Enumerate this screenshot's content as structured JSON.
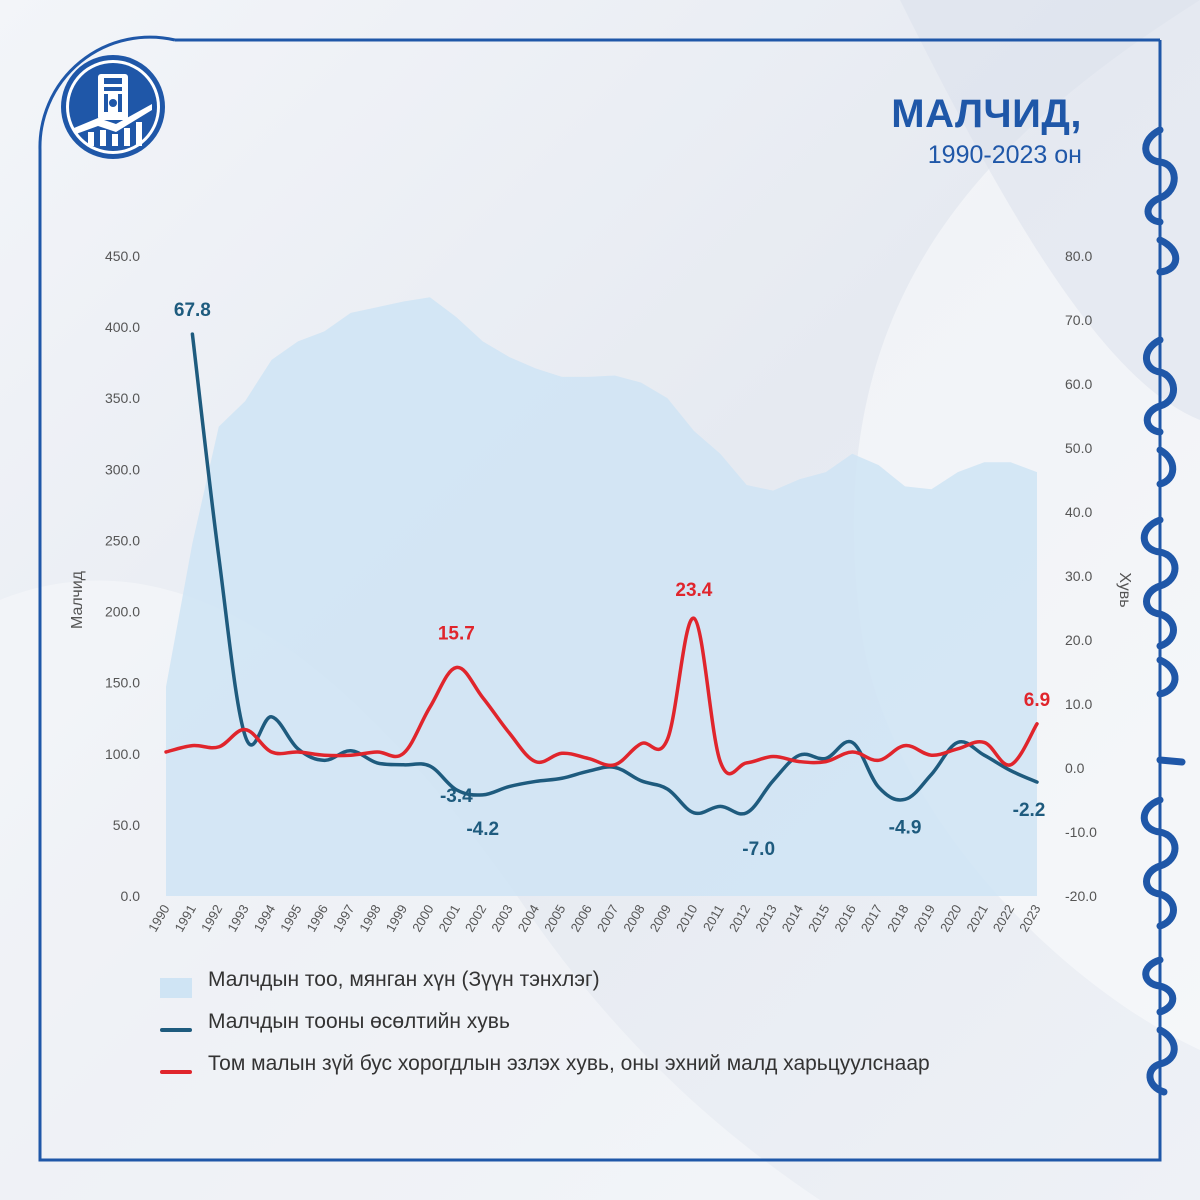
{
  "header": {
    "title": "МАЛЧИД,",
    "subtitle": "1990-2023 он"
  },
  "colors": {
    "area": "#cfe4f4",
    "growth_line": "#1e5b7e",
    "loss_line": "#e0252c",
    "title": "#1f57a8",
    "frame": "#1f57a8"
  },
  "icons": {
    "logo": "state-emblem-logo-icon",
    "script": "mongolian-script-decoration"
  },
  "chart_data": {
    "type": "line",
    "x": [
      "1990",
      "1991",
      "1992",
      "1993",
      "1994",
      "1995",
      "1996",
      "1997",
      "1998",
      "1999",
      "2000",
      "2001",
      "2002",
      "2003",
      "2004",
      "2005",
      "2006",
      "2007",
      "2008",
      "2009",
      "2010",
      "2011",
      "2012",
      "2013",
      "2014",
      "2015",
      "2016",
      "2017",
      "2018",
      "2019",
      "2020",
      "2021",
      "2022",
      "2023"
    ],
    "ylabel": "Малчид",
    "y2label": "Хувь",
    "ylim": [
      0,
      450
    ],
    "y2lim": [
      -20,
      80
    ],
    "yticks": [
      "0.0",
      "50.0",
      "100.0",
      "150.0",
      "200.0",
      "250.0",
      "300.0",
      "350.0",
      "400.0",
      "450.0"
    ],
    "y2ticks": [
      "-20.0",
      "-10.0",
      "0.0",
      "10.0",
      "20.0",
      "30.0",
      "40.0",
      "50.0",
      "60.0",
      "70.0",
      "80.0"
    ],
    "grid": false,
    "legend_position": "bottom",
    "series": [
      {
        "name": "Малчдын тоо, мянган хүн (Зүүн тэнхлэг)",
        "kind": "area",
        "axis": "left",
        "values": [
          147,
          248,
          330,
          348,
          377,
          390,
          397,
          410,
          414,
          418,
          421,
          407,
          390,
          379,
          371,
          365,
          365,
          366,
          361,
          350,
          327,
          311,
          289,
          285,
          293,
          298,
          311,
          303,
          288,
          286,
          298,
          305,
          305,
          298
        ]
      },
      {
        "name": "Малчдын тооны өсөлтийн хувь",
        "kind": "line",
        "axis": "right",
        "values": [
          null,
          67.8,
          33.0,
          5.0,
          8.0,
          3.0,
          1.2,
          2.7,
          0.8,
          0.5,
          0.3,
          -3.4,
          -4.2,
          -2.9,
          -2.1,
          -1.6,
          -0.5,
          0.1,
          -2.0,
          -3.3,
          -7.0,
          -6.0,
          -7.0,
          -2.0,
          2.0,
          1.5,
          4.0,
          -3.0,
          -4.9,
          -1.0,
          4.0,
          2.0,
          -0.4,
          -2.2
        ]
      },
      {
        "name": "Том малын зүй бус хорогдлын эзлэх хувь, оны эхний малд харьцуулснаар",
        "kind": "line",
        "axis": "right",
        "values": [
          2.5,
          3.5,
          3.3,
          6.0,
          2.5,
          2.5,
          2.0,
          2.0,
          2.5,
          2.3,
          9.5,
          15.7,
          11.0,
          5.5,
          1.0,
          2.3,
          1.5,
          0.5,
          3.8,
          4.5,
          23.4,
          1.0,
          0.8,
          1.8,
          1.0,
          1.0,
          2.5,
          1.2,
          3.5,
          2.0,
          3.0,
          4.0,
          0.5,
          6.9
        ]
      }
    ],
    "annotations": [
      {
        "series": 1,
        "x": "1991",
        "label": "67.8"
      },
      {
        "series": 1,
        "x": "2001",
        "label": "-3.4"
      },
      {
        "series": 1,
        "x": "2002",
        "label": "-4.2"
      },
      {
        "series": 1,
        "x": "2012",
        "label": "-7.0"
      },
      {
        "series": 1,
        "x": "2018",
        "label": "-4.9"
      },
      {
        "series": 1,
        "x": "2023",
        "label": "-2.2"
      },
      {
        "series": 2,
        "x": "2001",
        "label": "15.7"
      },
      {
        "series": 2,
        "x": "2010",
        "label": "23.4"
      },
      {
        "series": 2,
        "x": "2023",
        "label": "6.9"
      }
    ]
  }
}
